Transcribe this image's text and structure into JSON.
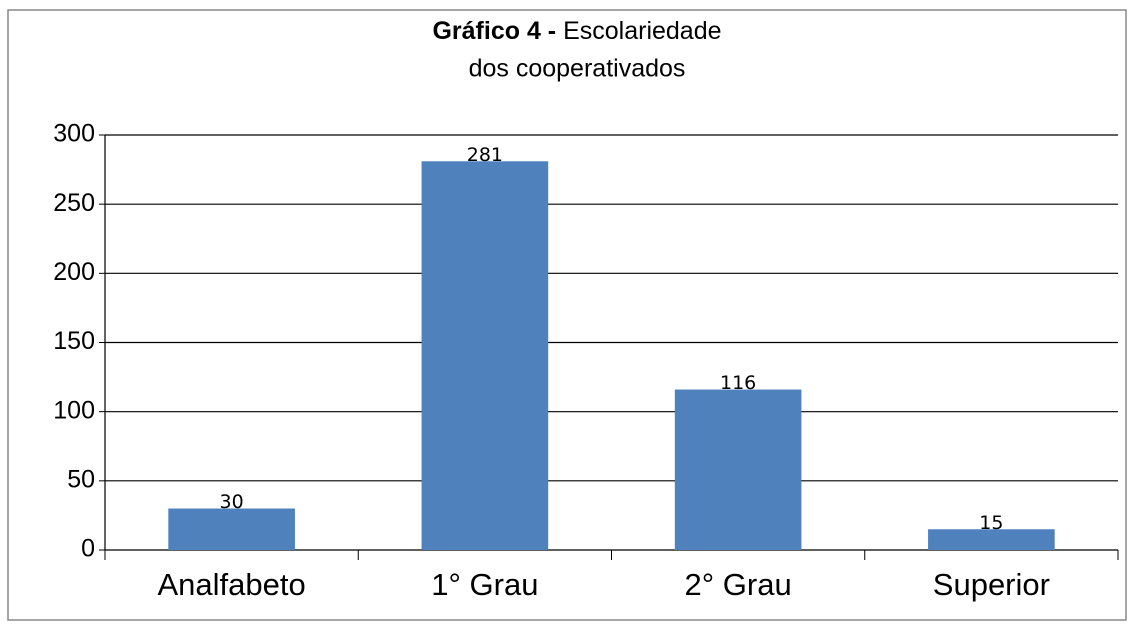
{
  "chart_data": {
    "type": "bar",
    "title": [
      "Gráfico 4 -",
      "Escolariedade",
      "dos cooperativados"
    ],
    "categories": [
      "Analfabeto",
      "1° Grau",
      "2° Grau",
      "Superior"
    ],
    "values": [
      30,
      281,
      116,
      15
    ],
    "color": "#4f81bd",
    "ylim": [
      0,
      300
    ],
    "yticks": [
      0,
      50,
      100,
      150,
      200,
      250,
      300
    ],
    "grid": true
  }
}
